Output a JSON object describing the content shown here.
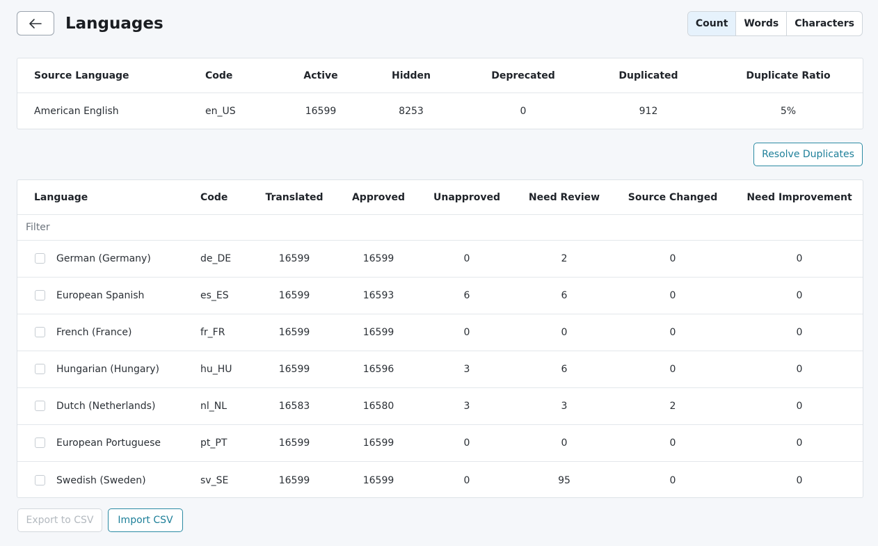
{
  "header": {
    "title": "Languages",
    "metric_tabs": [
      {
        "label": "Count",
        "active": true
      },
      {
        "label": "Words",
        "active": false
      },
      {
        "label": "Characters",
        "active": false
      }
    ]
  },
  "source_table": {
    "columns": [
      "Source Language",
      "Code",
      "Active",
      "Hidden",
      "Deprecated",
      "Duplicated",
      "Duplicate Ratio"
    ],
    "row": [
      "American English",
      "en_US",
      "16599",
      "8253",
      "0",
      "912",
      "5%"
    ]
  },
  "resolve_duplicates_label": "Resolve Duplicates",
  "languages_table": {
    "columns": [
      "Language",
      "Code",
      "Translated",
      "Approved",
      "Unapproved",
      "Need Review",
      "Source Changed",
      "Need Improvement"
    ],
    "filter_placeholder": "Filter",
    "rows": [
      [
        "German (Germany)",
        "de_DE",
        "16599",
        "16599",
        "0",
        "2",
        "0",
        "0"
      ],
      [
        "European Spanish",
        "es_ES",
        "16599",
        "16593",
        "6",
        "6",
        "0",
        "0"
      ],
      [
        "French (France)",
        "fr_FR",
        "16599",
        "16599",
        "0",
        "0",
        "0",
        "0"
      ],
      [
        "Hungarian (Hungary)",
        "hu_HU",
        "16599",
        "16596",
        "3",
        "6",
        "0",
        "0"
      ],
      [
        "Dutch (Netherlands)",
        "nl_NL",
        "16583",
        "16580",
        "3",
        "3",
        "2",
        "0"
      ],
      [
        "European Portuguese",
        "pt_PT",
        "16599",
        "16599",
        "0",
        "0",
        "0",
        "0"
      ],
      [
        "Swedish (Sweden)",
        "sv_SE",
        "16599",
        "16599",
        "0",
        "95",
        "0",
        "0"
      ]
    ]
  },
  "footer": {
    "export_label": "Export to CSV",
    "import_label": "Import CSV"
  },
  "colors": {
    "accent": "#1d7f99",
    "active_tab_bg": "#e6f2fc",
    "page_bg": "#f5f7fa"
  }
}
